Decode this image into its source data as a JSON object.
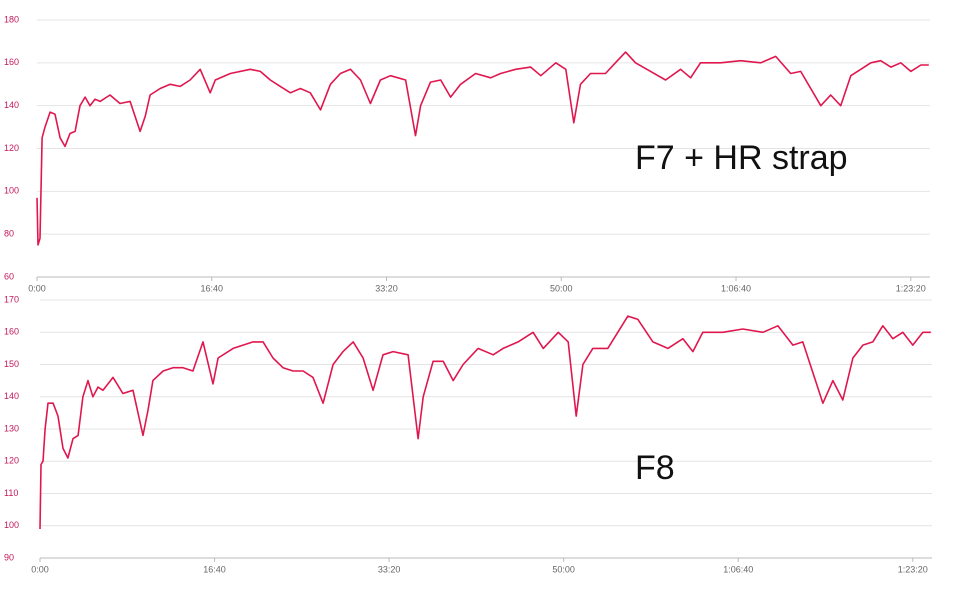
{
  "chart_data": [
    {
      "type": "line",
      "annotation": "F7 + HR strap",
      "x": [
        0,
        6,
        17,
        29,
        46,
        75,
        103,
        132,
        160,
        189,
        218,
        246,
        275,
        303,
        332,
        361,
        418,
        475,
        533,
        590,
        619,
        647,
        705,
        762,
        819,
        876,
        934,
        991,
        1020,
        1106,
        1220,
        1278,
        1335,
        1392,
        1450,
        1507,
        1564,
        1622,
        1679,
        1736,
        1794,
        1851,
        1908,
        1965,
        2023,
        2109,
        2166,
        2195,
        2252,
        2310,
        2367,
        2424,
        2510,
        2596,
        2653,
        2739,
        2825,
        2883,
        2969,
        3026,
        3072,
        3110,
        3167,
        3253,
        3310,
        3368,
        3425,
        3511,
        3597,
        3683,
        3740,
        3797,
        3912,
        4026,
        4141,
        4227,
        4313,
        4370,
        4485,
        4542,
        4599,
        4657,
        4714,
        4771,
        4828,
        4886,
        4943,
        5000,
        5058,
        5103
      ],
      "series": [
        {
          "color": "#e0174f",
          "values": [
            97,
            75,
            78,
            125,
            130,
            137,
            136,
            125,
            121,
            127,
            128,
            140,
            144,
            140,
            143,
            142,
            145,
            141,
            142,
            128,
            135,
            145,
            148,
            150,
            149,
            152,
            157,
            146,
            152,
            155,
            157,
            156,
            152,
            149,
            146,
            148,
            146,
            138,
            150,
            155,
            157,
            152,
            141,
            152,
            154,
            152,
            126,
            140,
            151,
            152,
            144,
            150,
            155,
            153,
            155,
            157,
            158,
            154,
            160,
            157,
            132,
            150,
            155,
            155,
            160,
            165,
            160,
            156,
            152,
            157,
            153,
            160,
            160,
            161,
            160,
            163,
            155,
            156,
            140,
            145,
            140,
            154,
            157,
            160,
            161,
            158,
            160,
            156,
            159,
            159
          ]
        }
      ],
      "xlim": [
        0,
        5110
      ],
      "ylim": [
        60,
        180
      ],
      "xticks": [
        {
          "value": 0,
          "label": "0:00"
        },
        {
          "value": 1000,
          "label": "16:40"
        },
        {
          "value": 2000,
          "label": "33:20"
        },
        {
          "value": 3000,
          "label": "50:00"
        },
        {
          "value": 4000,
          "label": "1:06:40"
        },
        {
          "value": 5000,
          "label": "1:23:20"
        }
      ],
      "yticks": [
        60,
        80,
        100,
        120,
        140,
        160,
        180
      ],
      "grid": true
    },
    {
      "type": "line",
      "annotation": "F8",
      "x": [
        0,
        6,
        17,
        29,
        46,
        75,
        103,
        132,
        160,
        189,
        218,
        246,
        275,
        303,
        332,
        361,
        418,
        475,
        533,
        590,
        619,
        647,
        705,
        762,
        819,
        876,
        934,
        991,
        1020,
        1106,
        1220,
        1278,
        1335,
        1392,
        1450,
        1507,
        1564,
        1622,
        1679,
        1736,
        1794,
        1851,
        1908,
        1965,
        2023,
        2109,
        2166,
        2195,
        2252,
        2310,
        2367,
        2424,
        2510,
        2596,
        2653,
        2739,
        2825,
        2883,
        2969,
        3026,
        3072,
        3110,
        3167,
        3253,
        3310,
        3368,
        3425,
        3511,
        3597,
        3683,
        3740,
        3797,
        3912,
        4026,
        4141,
        4227,
        4313,
        4370,
        4485,
        4542,
        4599,
        4657,
        4714,
        4771,
        4828,
        4886,
        4943,
        5000,
        5058,
        5103
      ],
      "series": [
        {
          "color": "#e0174f",
          "values": [
            99,
            119,
            120,
            130,
            138,
            138,
            134,
            124,
            121,
            127,
            128,
            140,
            145,
            140,
            143,
            142,
            146,
            141,
            142,
            128,
            136,
            145,
            148,
            149,
            149,
            148,
            157,
            144,
            152,
            155,
            157,
            157,
            152,
            149,
            148,
            148,
            146,
            138,
            150,
            154,
            157,
            152,
            142,
            153,
            154,
            153,
            127,
            140,
            151,
            151,
            145,
            150,
            155,
            153,
            155,
            157,
            160,
            155,
            160,
            157,
            134,
            150,
            155,
            155,
            160,
            165,
            164,
            157,
            155,
            158,
            154,
            160,
            160,
            161,
            160,
            162,
            156,
            157,
            138,
            145,
            139,
            152,
            156,
            157,
            162,
            158,
            160,
            156,
            160,
            160
          ]
        }
      ],
      "xlim": [
        0,
        5110
      ],
      "ylim": [
        90,
        170
      ],
      "xticks": [
        {
          "value": 0,
          "label": "0:00"
        },
        {
          "value": 1000,
          "label": "16:40"
        },
        {
          "value": 2000,
          "label": "33:20"
        },
        {
          "value": 3000,
          "label": "50:00"
        },
        {
          "value": 4000,
          "label": "1:06:40"
        },
        {
          "value": 5000,
          "label": "1:23:20"
        }
      ],
      "yticks": [
        90,
        100,
        110,
        120,
        130,
        140,
        150,
        160,
        170
      ],
      "grid": true
    }
  ]
}
